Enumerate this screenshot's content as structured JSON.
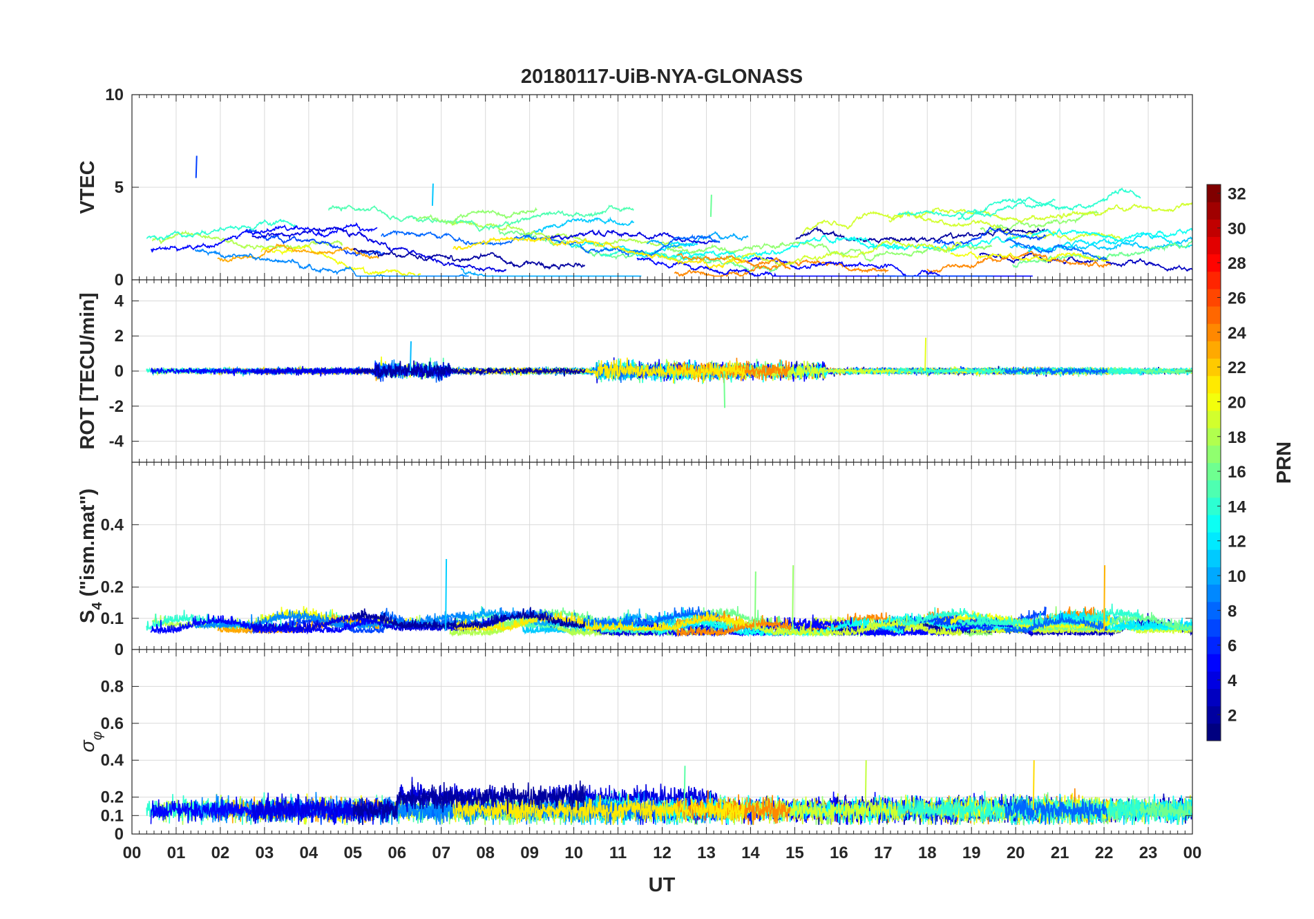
{
  "chart_data": {
    "type": "line",
    "title": "20180117-UiB-NYA-GLONASS",
    "xlabel": "UT",
    "x_tick_labels": [
      "00",
      "01",
      "02",
      "03",
      "04",
      "05",
      "06",
      "07",
      "08",
      "09",
      "10",
      "11",
      "12",
      "13",
      "14",
      "15",
      "16",
      "17",
      "18",
      "19",
      "20",
      "21",
      "22",
      "23",
      "00"
    ],
    "x_range_hours": [
      0,
      24
    ],
    "grid": true,
    "panels": [
      {
        "ylabel": "VTEC",
        "ylim": [
          0,
          10
        ],
        "yticks": [
          0,
          5,
          10
        ],
        "y_tick_labels": [
          "0",
          "5",
          "10"
        ],
        "typical_range": [
          0.3,
          5.2
        ],
        "notable_values": [
          {
            "x": 1.45,
            "y": 6.7
          },
          {
            "x": 6.8,
            "y": 5.2
          },
          {
            "x": 13.1,
            "y": 4.6
          }
        ]
      },
      {
        "ylabel": "ROT [TECU/min]",
        "ylim": [
          -5.2,
          5.2
        ],
        "yticks": [
          -4,
          -2,
          0,
          2,
          4
        ],
        "y_tick_labels": [
          "-4",
          "-2",
          "0",
          "2",
          "4"
        ],
        "typical_range": [
          -0.3,
          0.3
        ],
        "notable_values": [
          {
            "x": 6.3,
            "y": 1.7
          },
          {
            "x": 17.95,
            "y": 1.9
          },
          {
            "x": 13.4,
            "y": -2.1
          }
        ]
      },
      {
        "ylabel_main": "S",
        "ylabel_sub": "4",
        "ylabel_rest": " (\"ism.mat\")",
        "ylim": [
          0,
          0.6
        ],
        "yticks": [
          0,
          0.1,
          0.2,
          0.4
        ],
        "y_tick_labels": [
          "0",
          "0.1",
          "0.2",
          "0.4"
        ],
        "typical_range": [
          0.03,
          0.12
        ],
        "notable_values": [
          {
            "x": 7.1,
            "y": 0.29
          },
          {
            "x": 14.1,
            "y": 0.25
          },
          {
            "x": 22.0,
            "y": 0.27
          },
          {
            "x": 14.95,
            "y": 0.27
          }
        ]
      },
      {
        "ylabel_main": "σ",
        "ylabel_sub": "φ",
        "ylim": [
          0,
          1
        ],
        "yticks": [
          0,
          0.1,
          0.2,
          0.4,
          0.6,
          0.8
        ],
        "y_tick_labels": [
          "0",
          "0.1",
          "0.2",
          "0.4",
          "0.6",
          "0.8"
        ],
        "typical_range": [
          0.08,
          0.25
        ],
        "notable_values": [
          {
            "x": 16.6,
            "y": 0.4
          },
          {
            "x": 20.4,
            "y": 0.4
          },
          {
            "x": 12.5,
            "y": 0.37
          }
        ]
      }
    ],
    "colorbar": {
      "label": "PRN",
      "range": [
        1,
        32
      ],
      "ticks": [
        2,
        4,
        6,
        8,
        10,
        12,
        14,
        16,
        18,
        20,
        22,
        24,
        26,
        28,
        30,
        32
      ],
      "tick_labels": [
        "2",
        "4",
        "6",
        "8",
        "10",
        "12",
        "14",
        "16",
        "18",
        "20",
        "22",
        "24",
        "26",
        "28",
        "30",
        "32"
      ],
      "colormap": "jet"
    }
  }
}
